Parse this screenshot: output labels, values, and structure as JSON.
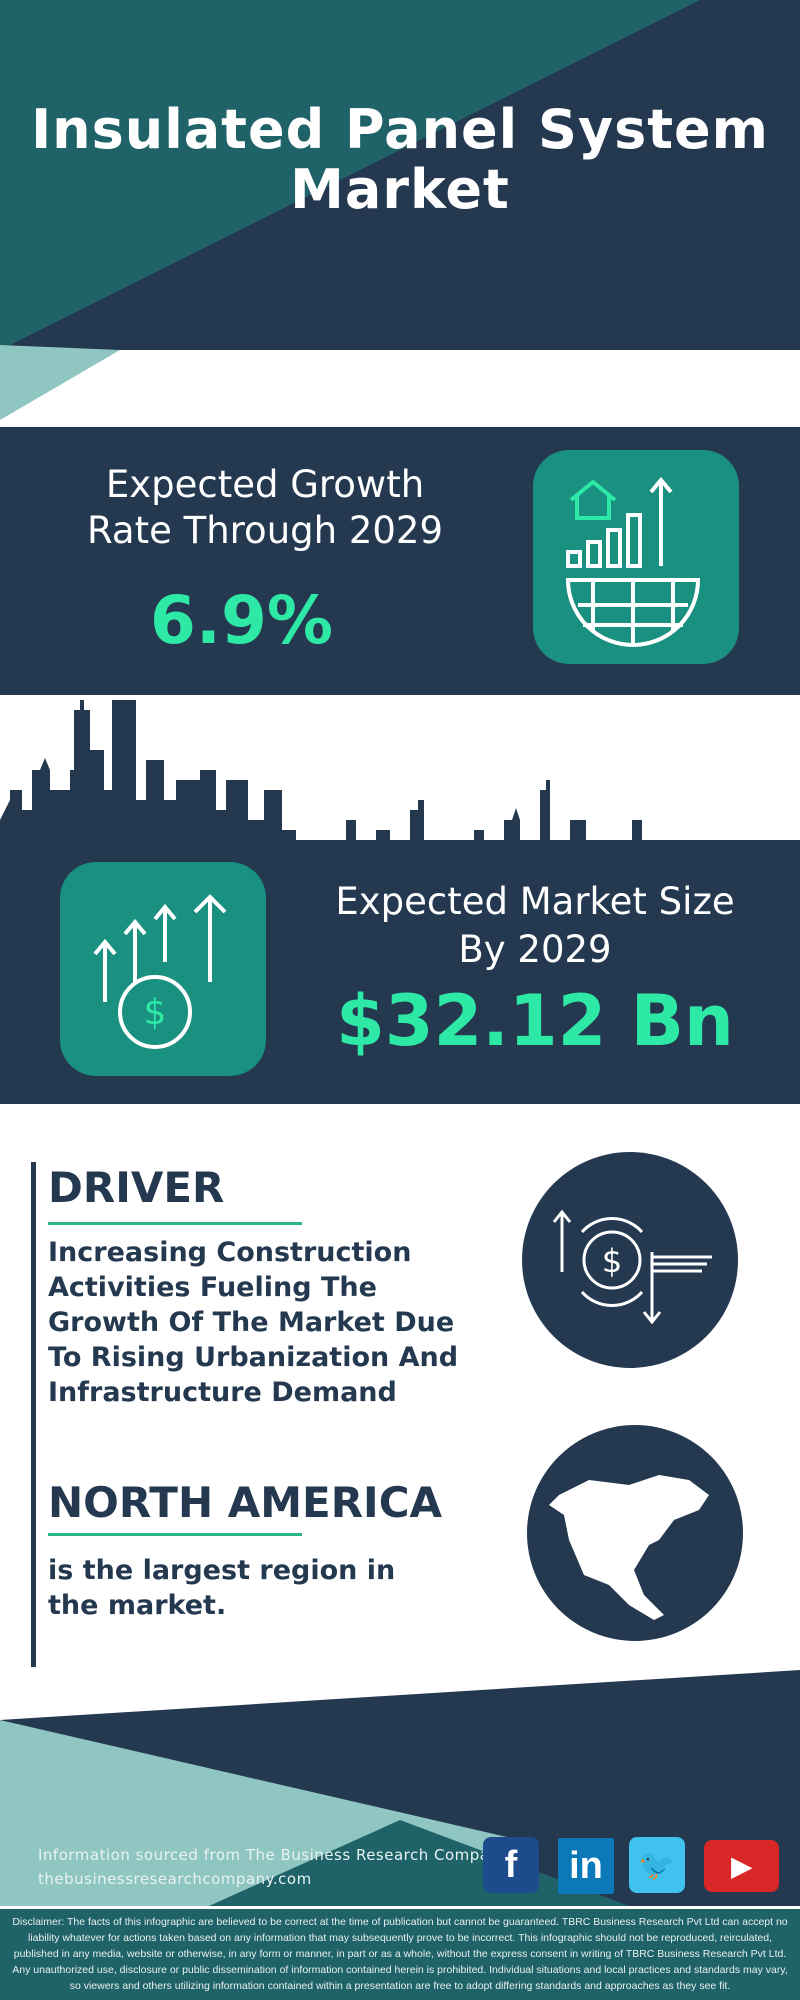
{
  "header": {
    "title_line1": "Insulated Panel System",
    "title_line2": "Market"
  },
  "growth": {
    "label_line1": "Expected Growth",
    "label_line2": "Rate Through 2029",
    "value": "6.9%",
    "icon": "house-chart-globe-icon"
  },
  "market_size": {
    "label_line1": "Expected Market Size",
    "label_line2": "By 2029",
    "value": "$32.12 Bn",
    "icon": "dollar-growth-arrows-icon"
  },
  "driver": {
    "heading": "DRIVER",
    "text": "Increasing Construction Activities Fueling The Growth Of The Market Due To Rising Urbanization And Infrastructure Demand",
    "icon": "dollar-exchange-icon"
  },
  "region": {
    "heading": "NORTH AMERICA",
    "text": "is the largest region in the market.",
    "icon": "north-america-map-icon"
  },
  "footer": {
    "source": "Information sourced from The Business Research Company",
    "website": "thebusinessresearchcompany.com",
    "social": [
      {
        "name": "facebook",
        "glyph": "f"
      },
      {
        "name": "linkedin",
        "glyph": "in"
      },
      {
        "name": "twitter",
        "glyph": "🐦"
      },
      {
        "name": "youtube",
        "glyph": "▶"
      }
    ],
    "disclaimer": "Disclaimer: The facts of this infographic are believed to be correct at the time of publication but cannot be guaranteed. TBRC Business Research Pvt Ltd can accept no liability whatever for actions taken based on any information that may subsequently prove to be incorrect. This infographic should not be reproduced, reirculated, published in any media, website or otherwise, in any form or manner, in part or as a whole, without the express consent in writing of TBRC Business Research Pvt Ltd. Any unauthorized use, disclosure or public dissemination of information contained herein is prohibited. Individual situations and local practices and standards may vary, so viewers and others utilizing information contained within a presentation are free to adopt differing standards and approaches as they see fit."
  },
  "colors": {
    "navy": "#243850",
    "teal": "#1f6369",
    "light_teal": "#8fc6c2",
    "accent": "#2ee8a5",
    "icon_box": "#1a9080"
  }
}
